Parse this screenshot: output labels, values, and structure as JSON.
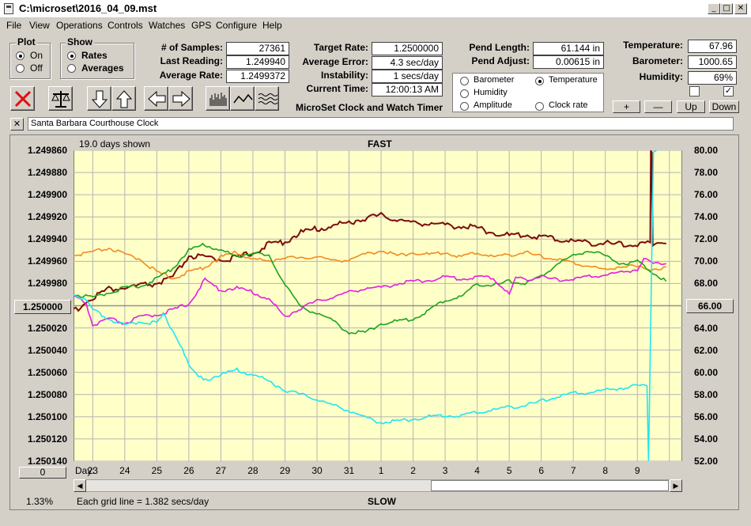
{
  "window": {
    "title": "C:\\microset\\2016_04_09.mst",
    "min": "_",
    "max": "□",
    "close": "✕"
  },
  "menu": [
    "File",
    "View",
    "Operations",
    "Controls",
    "Watches",
    "GPS",
    "Configure",
    "Help"
  ],
  "plot_group": {
    "title": "Plot",
    "on": "On",
    "off": "Off",
    "selected": "On"
  },
  "show_group": {
    "title": "Show",
    "rates": "Rates",
    "averages": "Averages",
    "selected": "Rates"
  },
  "stats": {
    "samples_label": "# of Samples:",
    "samples": "27361",
    "last_label": "Last Reading:",
    "last": "1.249940",
    "avg_label": "Average Rate:",
    "avg": "1.2499372",
    "target_label": "Target Rate:",
    "target": "1.2500000",
    "avgerr_label": "Average Error:",
    "avgerr": "4.3 sec/day",
    "instab_label": "Instability:",
    "instab": "1 secs/day",
    "time_label": "Current Time:",
    "time": "12:00:13 AM",
    "pendlen_label": "Pend Length:",
    "pendlen": "61.144 in",
    "pendadj_label": "Pend Adjust:",
    "pendadj": "0.00615 in",
    "temp_label": "Temperature:",
    "temp": "67.96",
    "baro_label": "Barometer:",
    "baro": "1000.65",
    "hum_label": "Humidity:",
    "hum": "69%"
  },
  "app_name": "MicroSet Clock and Watch Timer",
  "aux_options": {
    "barometer": "Barometer",
    "temperature": "Temperature",
    "humidity": "Humidity",
    "amplitude": "Amplitude",
    "clock_rate": "Clock rate",
    "selected": "Temperature"
  },
  "aux_buttons": {
    "plus": "+",
    "minus": "—",
    "up": "Up",
    "down": "Down"
  },
  "clock_name": "Santa Barbara Courthouse Clock",
  "clear_btn": "✕",
  "offset_btn": "1.250000",
  "right_btn": "66.00",
  "bottom_btn": "0",
  "zoom": "1.33%",
  "colors": {
    "rate": "#7b0c0c",
    "barometer": "#f08c1e",
    "temperature": "#1ea31e",
    "humidity": "#e020e0",
    "amplitude": "#20e6f0",
    "chart_bg": "#ffffc8",
    "grid": "#b4b4b4"
  },
  "chart_data": {
    "type": "line",
    "days_shown": "19.0 days shown",
    "top_label": "FAST",
    "bottom_label": "SLOW",
    "grid_text": "Each grid line = 1.382 secs/day",
    "day_label": "Day:",
    "x_ticks": [
      "23",
      "24",
      "25",
      "26",
      "27",
      "28",
      "29",
      "30",
      "31",
      "1",
      "2",
      "3",
      "4",
      "5",
      "6",
      "7",
      "8",
      "9"
    ],
    "y_left_ticks": [
      "1.249860",
      "1.249880",
      "1.249900",
      "1.249920",
      "1.249940",
      "1.249960",
      "1.249980",
      "1.250000",
      "1.250020",
      "1.250040",
      "1.250060",
      "1.250080",
      "1.250100",
      "1.250120",
      "1.250140"
    ],
    "y_right_ticks": [
      "80.00",
      "78.00",
      "76.00",
      "74.00",
      "72.00",
      "70.00",
      "68.00",
      "66.00",
      "64.00",
      "62.00",
      "60.00",
      "58.00",
      "56.00",
      "54.00",
      "52.00"
    ],
    "xlim": [
      22.4,
      41.4
    ],
    "y_left_range": [
      1.24986,
      1.25014
    ],
    "y_right_range": [
      52,
      80
    ],
    "series": [
      {
        "key": "rate",
        "points": [
          [
            22.4,
            1.250005
          ],
          [
            23.0,
            1.249992
          ],
          [
            23.5,
            1.249985
          ],
          [
            24.0,
            1.249984
          ],
          [
            24.5,
            1.249982
          ],
          [
            25.0,
            1.24998
          ],
          [
            25.5,
            1.249975
          ],
          [
            26.0,
            1.249955
          ],
          [
            26.5,
            1.249957
          ],
          [
            27.0,
            1.249958
          ],
          [
            27.5,
            1.249957
          ],
          [
            28.0,
            1.249952
          ],
          [
            28.5,
            1.249945
          ],
          [
            29.0,
            1.249942
          ],
          [
            29.5,
            1.249934
          ],
          [
            30.0,
            1.249931
          ],
          [
            30.5,
            1.249928
          ],
          [
            31.0,
            1.249925
          ],
          [
            31.5,
            1.249921
          ],
          [
            32.0,
            1.249919
          ],
          [
            32.5,
            1.249922
          ],
          [
            33.0,
            1.249926
          ],
          [
            33.5,
            1.249925
          ],
          [
            34.0,
            1.249928
          ],
          [
            34.5,
            1.249928
          ],
          [
            35.0,
            1.24993
          ],
          [
            35.5,
            1.249934
          ],
          [
            36.0,
            1.249937
          ],
          [
            36.5,
            1.249936
          ],
          [
            37.0,
            1.249938
          ],
          [
            37.5,
            1.24994
          ],
          [
            38.0,
            1.249942
          ],
          [
            38.5,
            1.249943
          ],
          [
            39.0,
            1.249944
          ],
          [
            39.5,
            1.249945
          ],
          [
            40.0,
            1.249945
          ],
          [
            40.4,
            1.249943
          ],
          [
            40.42,
            1.249862
          ],
          [
            40.45,
            1.249862
          ],
          [
            40.48,
            1.249945
          ],
          [
            40.7,
            1.249941
          ],
          [
            40.9,
            1.249944
          ]
        ]
      },
      {
        "key": "barometer",
        "points": [
          [
            22.4,
            70.5
          ],
          [
            23.0,
            70.8
          ],
          [
            23.5,
            71.2
          ],
          [
            24.0,
            70.6
          ],
          [
            24.5,
            70.2
          ],
          [
            25.0,
            69.0
          ],
          [
            25.5,
            68.5
          ],
          [
            26.0,
            69.0
          ],
          [
            26.5,
            69.5
          ],
          [
            27.0,
            70.4
          ],
          [
            27.5,
            70.8
          ],
          [
            28.0,
            70.2
          ],
          [
            28.5,
            70.0
          ],
          [
            29.0,
            70.4
          ],
          [
            29.5,
            70.2
          ],
          [
            30.0,
            70.5
          ],
          [
            30.5,
            70.0
          ],
          [
            31.0,
            70.2
          ],
          [
            31.5,
            70.6
          ],
          [
            32.0,
            71.0
          ],
          [
            32.5,
            70.5
          ],
          [
            33.0,
            70.8
          ],
          [
            33.5,
            70.6
          ],
          [
            34.0,
            70.8
          ],
          [
            34.5,
            70.4
          ],
          [
            35.0,
            70.8
          ],
          [
            35.5,
            70.4
          ],
          [
            36.0,
            70.6
          ],
          [
            36.5,
            70.8
          ],
          [
            37.0,
            70.4
          ],
          [
            37.5,
            70.2
          ],
          [
            38.0,
            69.8
          ],
          [
            38.5,
            69.6
          ],
          [
            39.0,
            69.2
          ],
          [
            39.5,
            69.6
          ],
          [
            40.0,
            69.5
          ],
          [
            40.5,
            69.3
          ],
          [
            40.9,
            69.5
          ]
        ]
      },
      {
        "key": "temperature",
        "points": [
          [
            22.4,
            67.0
          ],
          [
            23.0,
            66.7
          ],
          [
            23.5,
            67.2
          ],
          [
            24.0,
            67.6
          ],
          [
            24.5,
            67.8
          ],
          [
            25.0,
            68.4
          ],
          [
            25.5,
            69.4
          ],
          [
            26.0,
            71.0
          ],
          [
            26.5,
            71.5
          ],
          [
            27.0,
            71.0
          ],
          [
            27.5,
            70.4
          ],
          [
            28.0,
            70.8
          ],
          [
            28.5,
            70.4
          ],
          [
            29.0,
            68.0
          ],
          [
            29.5,
            65.8
          ],
          [
            30.0,
            65.4
          ],
          [
            30.5,
            64.6
          ],
          [
            31.0,
            63.6
          ],
          [
            31.5,
            63.6
          ],
          [
            32.0,
            64.4
          ],
          [
            32.5,
            64.6
          ],
          [
            33.0,
            64.8
          ],
          [
            33.5,
            65.6
          ],
          [
            34.0,
            66.5
          ],
          [
            34.5,
            66.8
          ],
          [
            35.0,
            68.0
          ],
          [
            35.5,
            67.8
          ],
          [
            36.0,
            68.2
          ],
          [
            36.5,
            68.0
          ],
          [
            37.0,
            68.6
          ],
          [
            37.5,
            69.8
          ],
          [
            38.0,
            70.5
          ],
          [
            38.5,
            71.0
          ],
          [
            39.0,
            70.5
          ],
          [
            39.5,
            69.8
          ],
          [
            40.0,
            70.0
          ],
          [
            40.5,
            69.0
          ],
          [
            40.9,
            68.2
          ]
        ]
      },
      {
        "key": "humidity",
        "points": [
          [
            22.4,
            66.8
          ],
          [
            22.8,
            66.2
          ],
          [
            23.0,
            64.2
          ],
          [
            23.5,
            64.8
          ],
          [
            24.0,
            64.4
          ],
          [
            24.5,
            65.0
          ],
          [
            25.0,
            65.2
          ],
          [
            25.5,
            65.6
          ],
          [
            26.0,
            66.2
          ],
          [
            26.5,
            68.3
          ],
          [
            27.0,
            67.4
          ],
          [
            27.5,
            67.6
          ],
          [
            28.0,
            67.2
          ],
          [
            28.5,
            66.6
          ],
          [
            29.0,
            65.0
          ],
          [
            29.5,
            65.8
          ],
          [
            30.0,
            66.4
          ],
          [
            30.5,
            66.8
          ],
          [
            31.0,
            67.2
          ],
          [
            31.5,
            67.6
          ],
          [
            32.0,
            67.6
          ],
          [
            32.5,
            68.0
          ],
          [
            33.0,
            68.2
          ],
          [
            33.5,
            68.3
          ],
          [
            34.0,
            68.6
          ],
          [
            34.5,
            68.4
          ],
          [
            35.0,
            68.6
          ],
          [
            35.5,
            68.5
          ],
          [
            36.0,
            67.0
          ],
          [
            36.2,
            68.5
          ],
          [
            36.5,
            68.4
          ],
          [
            37.0,
            68.6
          ],
          [
            37.5,
            68.3
          ],
          [
            38.0,
            68.4
          ],
          [
            38.5,
            68.6
          ],
          [
            39.0,
            68.8
          ],
          [
            39.5,
            69.0
          ],
          [
            40.0,
            69.3
          ],
          [
            40.2,
            70.2
          ],
          [
            40.5,
            69.8
          ],
          [
            40.9,
            69.8
          ]
        ]
      },
      {
        "key": "amplitude",
        "points": [
          [
            22.4,
            67.0
          ],
          [
            22.8,
            66.4
          ],
          [
            23.0,
            65.6
          ],
          [
            23.5,
            64.8
          ],
          [
            24.0,
            64.2
          ],
          [
            24.5,
            64.6
          ],
          [
            25.0,
            64.4
          ],
          [
            25.2,
            65.2
          ],
          [
            25.5,
            63.8
          ],
          [
            25.8,
            62.2
          ],
          [
            26.0,
            60.5
          ],
          [
            26.3,
            59.6
          ],
          [
            26.6,
            59.4
          ],
          [
            27.0,
            59.8
          ],
          [
            27.5,
            60.2
          ],
          [
            28.0,
            59.8
          ],
          [
            28.5,
            59.2
          ],
          [
            29.0,
            58.4
          ],
          [
            29.5,
            58.0
          ],
          [
            30.0,
            57.6
          ],
          [
            30.5,
            57.0
          ],
          [
            31.0,
            56.6
          ],
          [
            31.5,
            55.9
          ],
          [
            32.0,
            55.5
          ],
          [
            32.5,
            55.6
          ],
          [
            33.0,
            55.8
          ],
          [
            33.5,
            56.0
          ],
          [
            34.0,
            56.1
          ],
          [
            34.5,
            56.1
          ],
          [
            35.0,
            56.4
          ],
          [
            35.5,
            56.6
          ],
          [
            36.0,
            56.9
          ],
          [
            36.5,
            57.0
          ],
          [
            37.0,
            57.4
          ],
          [
            37.5,
            57.8
          ],
          [
            38.0,
            58.1
          ],
          [
            38.5,
            58.2
          ],
          [
            39.0,
            58.4
          ],
          [
            39.5,
            58.6
          ],
          [
            40.0,
            58.8
          ],
          [
            40.3,
            58.8
          ],
          [
            40.35,
            52.0
          ],
          [
            40.5,
            80.0
          ],
          [
            40.6,
            80.0
          ]
        ]
      }
    ]
  }
}
